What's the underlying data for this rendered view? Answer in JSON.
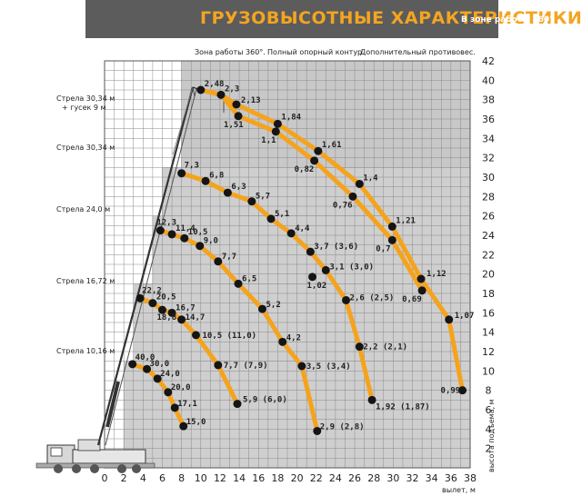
{
  "header": {
    "title": "ГРУЗОВЫСОТНЫЕ ХАРАКТЕРИСТИКИ",
    "subtitle": "В зоне работы 360°"
  },
  "chart_data": {
    "type": "line",
    "title": "ГРУЗОВЫСОТНЫЕ ХАРАКТЕРИСТИКИ",
    "subtitle": "В зоне работы 360°",
    "notes": [
      "Зона работы 360°.",
      "Полный опорный контур.",
      "Дополнительный противовес."
    ],
    "xlabel": "вылет, м",
    "ylabel": "высота подъема, м",
    "xlim": [
      0,
      38
    ],
    "ylim": [
      0,
      42
    ],
    "x_ticks": [
      "0",
      "2",
      "4",
      "6",
      "8",
      "10",
      "12",
      "14",
      "16",
      "18",
      "20",
      "22",
      "24",
      "26",
      "28",
      "30",
      "32",
      "34",
      "36",
      "38"
    ],
    "y_ticks": [
      "2",
      "4",
      "6",
      "8",
      "10",
      "12",
      "14",
      "16",
      "18",
      "20",
      "22",
      "24",
      "26",
      "28",
      "30",
      "32",
      "34",
      "36",
      "38",
      "40",
      "42"
    ],
    "grid": true,
    "series": [
      {
        "name": "Стрела 10,16 м",
        "points": [
          {
            "x": 2.9,
            "y": 10.7,
            "label": "40,0"
          },
          {
            "x": 4.4,
            "y": 10.2,
            "label": "30,0"
          },
          {
            "x": 5.5,
            "y": 9.2,
            "label": "24,0"
          },
          {
            "x": 6.6,
            "y": 7.8,
            "label": "20,0"
          },
          {
            "x": 7.3,
            "y": 6.2,
            "label": "17,1"
          },
          {
            "x": 8.2,
            "y": 4.3,
            "label": "15,0"
          }
        ]
      },
      {
        "name": "Стрела 16,72 м",
        "points": [
          {
            "x": 3.7,
            "y": 17.5,
            "label": "22,2"
          },
          {
            "x": 5.0,
            "y": 17.0,
            "label": "20,5"
          },
          {
            "x": 6.0,
            "y": 16.3,
            "label": "18,8"
          },
          {
            "x": 7.0,
            "y": 16.0,
            "label": "16,7"
          },
          {
            "x": 8.0,
            "y": 15.3,
            "label": "14,7"
          },
          {
            "x": 9.5,
            "y": 13.7,
            "label": "10,5 (11,0)"
          },
          {
            "x": 11.8,
            "y": 10.6,
            "label": "7,7 (7,9)"
          },
          {
            "x": 13.8,
            "y": 6.6,
            "label": "5,9 (6,0)"
          }
        ]
      },
      {
        "name": "Стрела 24,0 м",
        "points": [
          {
            "x": 5.8,
            "y": 24.5,
            "label": "12,3"
          },
          {
            "x": 7.0,
            "y": 24.1,
            "label": "11,4"
          },
          {
            "x": 8.3,
            "y": 23.7,
            "label": "10,5"
          },
          {
            "x": 9.9,
            "y": 22.9,
            "label": "9,0"
          },
          {
            "x": 11.8,
            "y": 21.3,
            "label": "7,7"
          },
          {
            "x": 13.9,
            "y": 19.0,
            "label": "6,5"
          },
          {
            "x": 16.4,
            "y": 16.4,
            "label": "5,2"
          },
          {
            "x": 18.5,
            "y": 13.0,
            "label": "4,2"
          },
          {
            "x": 20.5,
            "y": 10.5,
            "label": "3,5 (3,4)"
          },
          {
            "x": 22.1,
            "y": 3.8,
            "label": "2,9 (2,8)"
          }
        ]
      },
      {
        "name": "Стрела 30,34 м",
        "points": [
          {
            "x": 8.0,
            "y": 30.4,
            "label": "7,3"
          },
          {
            "x": 10.5,
            "y": 29.6,
            "label": "6,8"
          },
          {
            "x": 12.8,
            "y": 28.4,
            "label": "6,3"
          },
          {
            "x": 15.3,
            "y": 27.5,
            "label": "5,7"
          },
          {
            "x": 17.3,
            "y": 25.7,
            "label": "5,1"
          },
          {
            "x": 19.4,
            "y": 24.2,
            "label": "4,4"
          },
          {
            "x": 21.4,
            "y": 22.3,
            "label": "3,7 (3,6)"
          },
          {
            "x": 23.0,
            "y": 20.4,
            "label": "3,1 (3,0)"
          },
          {
            "x": 21.6,
            "y": 19.7,
            "label": "1,02"
          },
          {
            "x": 25.1,
            "y": 17.3,
            "label": "2,6 (2,5)"
          },
          {
            "x": 26.5,
            "y": 12.5,
            "label": "2,2 (2,1)"
          },
          {
            "x": 27.8,
            "y": 7.0,
            "label": "1,92 (1,87)"
          }
        ]
      },
      {
        "name": "Стрела 30,34 м + гусек 9 м",
        "points": [
          {
            "x": 10.0,
            "y": 39.0,
            "label": "2,48"
          },
          {
            "x": 12.1,
            "y": 38.5,
            "label": "2,3"
          },
          {
            "x": 13.7,
            "y": 37.5,
            "label": "2,13"
          },
          {
            "x": 13.9,
            "y": 36.3,
            "label": "1,51"
          },
          {
            "x": 18.0,
            "y": 35.5,
            "label": "1,84"
          },
          {
            "x": 17.8,
            "y": 34.7,
            "label": "1,1"
          },
          {
            "x": 22.2,
            "y": 32.7,
            "label": "1,61"
          },
          {
            "x": 21.8,
            "y": 31.7,
            "label": "0,82"
          },
          {
            "x": 26.5,
            "y": 29.3,
            "label": "1,4"
          },
          {
            "x": 25.8,
            "y": 28.0,
            "label": "0,76"
          },
          {
            "x": 29.9,
            "y": 24.9,
            "label": "1,21"
          },
          {
            "x": 29.9,
            "y": 23.5,
            "label": "0,7"
          },
          {
            "x": 32.9,
            "y": 19.5,
            "label": "1,12"
          },
          {
            "x": 33.0,
            "y": 18.3,
            "label": "0,69"
          },
          {
            "x": 35.8,
            "y": 15.3,
            "label": "1,07"
          },
          {
            "x": 37.2,
            "y": 8.0,
            "label": "0,99"
          }
        ]
      }
    ]
  }
}
